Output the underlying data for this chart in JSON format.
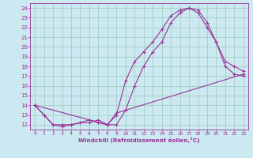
{
  "xlabel": "Windchill (Refroidissement éolien,°C)",
  "bg_color": "#cce8f0",
  "line_color": "#993399",
  "grid_color": "#99ccbb",
  "xlim": [
    -0.5,
    23.5
  ],
  "ylim": [
    11.5,
    24.5
  ],
  "xticks": [
    0,
    1,
    2,
    3,
    4,
    5,
    6,
    7,
    8,
    9,
    10,
    11,
    12,
    13,
    14,
    15,
    16,
    17,
    18,
    19,
    20,
    21,
    22,
    23
  ],
  "yticks": [
    12,
    13,
    14,
    15,
    16,
    17,
    18,
    19,
    20,
    21,
    22,
    23,
    24
  ],
  "series1_x": [
    0,
    1,
    2,
    3,
    4,
    5,
    6,
    7,
    8,
    9,
    10,
    11,
    12,
    13,
    14,
    15,
    16,
    17,
    18,
    19,
    20,
    21,
    22,
    23
  ],
  "series1_y": [
    14.0,
    13.0,
    12.0,
    11.8,
    12.0,
    12.2,
    12.5,
    12.2,
    12.0,
    13.0,
    16.5,
    18.5,
    19.5,
    20.5,
    21.8,
    23.2,
    23.8,
    24.0,
    23.8,
    22.5,
    20.5,
    18.5,
    18.0,
    17.5
  ],
  "series2_x": [
    0,
    1,
    2,
    3,
    4,
    5,
    6,
    7,
    8,
    9,
    10,
    11,
    12,
    13,
    14,
    15,
    16,
    17,
    18,
    19,
    20,
    21,
    22,
    23
  ],
  "series2_y": [
    14.0,
    13.0,
    12.0,
    12.0,
    12.0,
    12.2,
    12.2,
    12.5,
    12.0,
    12.0,
    13.5,
    16.0,
    18.0,
    19.5,
    20.5,
    22.5,
    23.5,
    24.0,
    23.5,
    22.0,
    20.5,
    18.0,
    17.2,
    17.0
  ],
  "series3_x": [
    0,
    8,
    9,
    23
  ],
  "series3_y": [
    14.0,
    12.0,
    13.2,
    17.2
  ]
}
